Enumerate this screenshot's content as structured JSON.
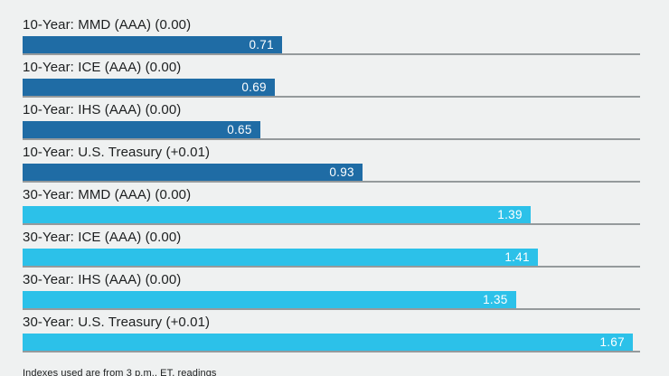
{
  "chart_data": {
    "type": "bar",
    "orientation": "horizontal",
    "title": "",
    "xlabel": "",
    "ylabel": "",
    "xlim": [
      0,
      1.69
    ],
    "grid": "baseline-per-row",
    "legend": "none",
    "categories": [
      "10-Year: MMD (AAA) (0.00)",
      "10-Year: ICE (AAA) (0.00)",
      "10-Year: IHS (AAA) (0.00)",
      "10-Year: U.S. Treasury (+0.01)",
      "30-Year: MMD (AAA) (0.00)",
      "30-Year: ICE (AAA) (0.00)",
      "30-Year: IHS (AAA) (0.00)",
      "30-Year: U.S. Treasury (+0.01)"
    ],
    "values": [
      0.71,
      0.69,
      0.65,
      0.93,
      1.39,
      1.41,
      1.35,
      1.67
    ],
    "value_labels": [
      "0.71",
      "0.69",
      "0.65",
      "0.93",
      "1.39",
      "1.41",
      "1.35",
      "1.67"
    ],
    "series_groups": [
      {
        "name": "10-Year",
        "color": "#1f6ca5",
        "row_indexes": [
          0,
          1,
          2,
          3
        ]
      },
      {
        "name": "30-Year",
        "color": "#2cc1e9",
        "row_indexes": [
          4,
          5,
          6,
          7
        ]
      }
    ]
  },
  "colors": {
    "ten_year_bar": "#1f6ca5",
    "thirty_year_bar": "#2cc1e9",
    "background": "#eff1f1",
    "gridline": "#959a9c",
    "label_text": "#1d1f20",
    "value_text": "#ffffff"
  },
  "footnote": "Indexes used are from 3 p.m., ET, readings"
}
